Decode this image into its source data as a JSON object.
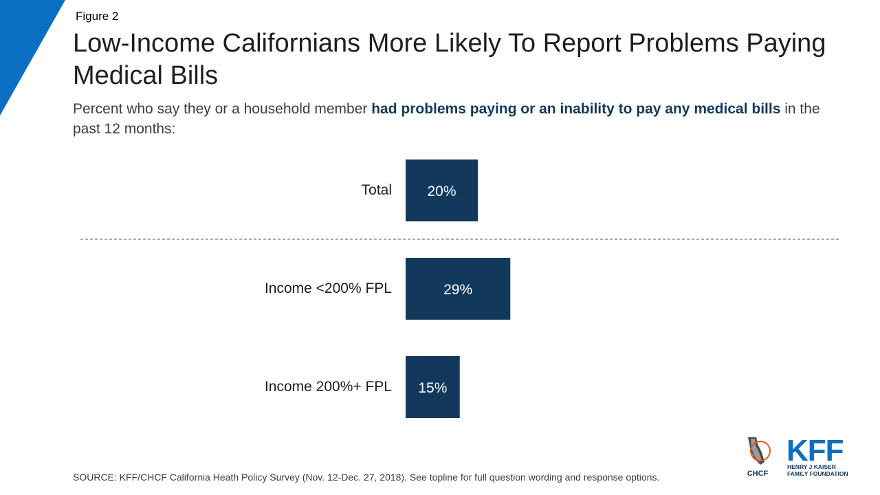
{
  "figure_label": "Figure 2",
  "title": "Low-Income Californians More Likely To Report Problems Paying Medical Bills",
  "subtitle": {
    "part1": "Percent who say they or a household member ",
    "emphasis1": "had problems paying or an inability to pay any medical bills",
    "part2": " in the past 12 months:"
  },
  "colors": {
    "bar": "#12395b",
    "accent": "#0a6fc2",
    "text": "#1e1e1e"
  },
  "chart_data": {
    "type": "bar",
    "orientation": "horizontal",
    "categories": [
      "Total",
      "Income <200% FPL",
      "Income 200%+ FPL"
    ],
    "values": [
      20,
      29,
      15
    ],
    "data_labels": [
      "20%",
      "29%",
      "15%"
    ],
    "separator_after": "Total",
    "xlabel": "",
    "ylabel": "",
    "grid": false,
    "legend": "none"
  },
  "source": "SOURCE: KFF/CHCF California Heath Policy Survey (Nov. 12-Dec. 27, 2018). See topline for full question wording and response options.",
  "logos": {
    "chcf": {
      "name": "CHCF"
    },
    "kff": {
      "name": "KFF",
      "line1": "HENRY J KAISER",
      "line2": "FAMILY FOUNDATION"
    }
  }
}
